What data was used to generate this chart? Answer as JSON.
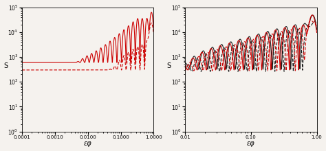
{
  "fig_width": 4.74,
  "fig_height": 2.2,
  "dpi": 100,
  "bg_color": "#f5f2ee",
  "panel1": {
    "xmin": 0.0001,
    "xmax": 1.0,
    "ymin": 1.0,
    "ymax": 100000.0,
    "xlabel": "εφ",
    "ylabel": "S",
    "solid_color": "#cc0000",
    "dashed_color": "#cc0000",
    "xticks": [
      0.0001,
      0.001,
      0.01,
      0.1,
      1.0
    ],
    "xticklabels": [
      "0.0001",
      "0.0010",
      "0.0100",
      "0.1000",
      "1.0000"
    ]
  },
  "panel2": {
    "xmin": 0.01,
    "xmax": 1.0,
    "ymin": 1.0,
    "ymax": 100000.0,
    "xlabel": "εφ",
    "ylabel": "S",
    "solid_color": "#cc0000",
    "dashed_color": "#cc0000",
    "black_solid_color": "#1a1a1a",
    "black_dashed_color": "#1a1a1a",
    "xticks": [
      0.01,
      0.1,
      1.0
    ],
    "xticklabels": [
      "0.01",
      "0.10",
      "1.00"
    ]
  }
}
